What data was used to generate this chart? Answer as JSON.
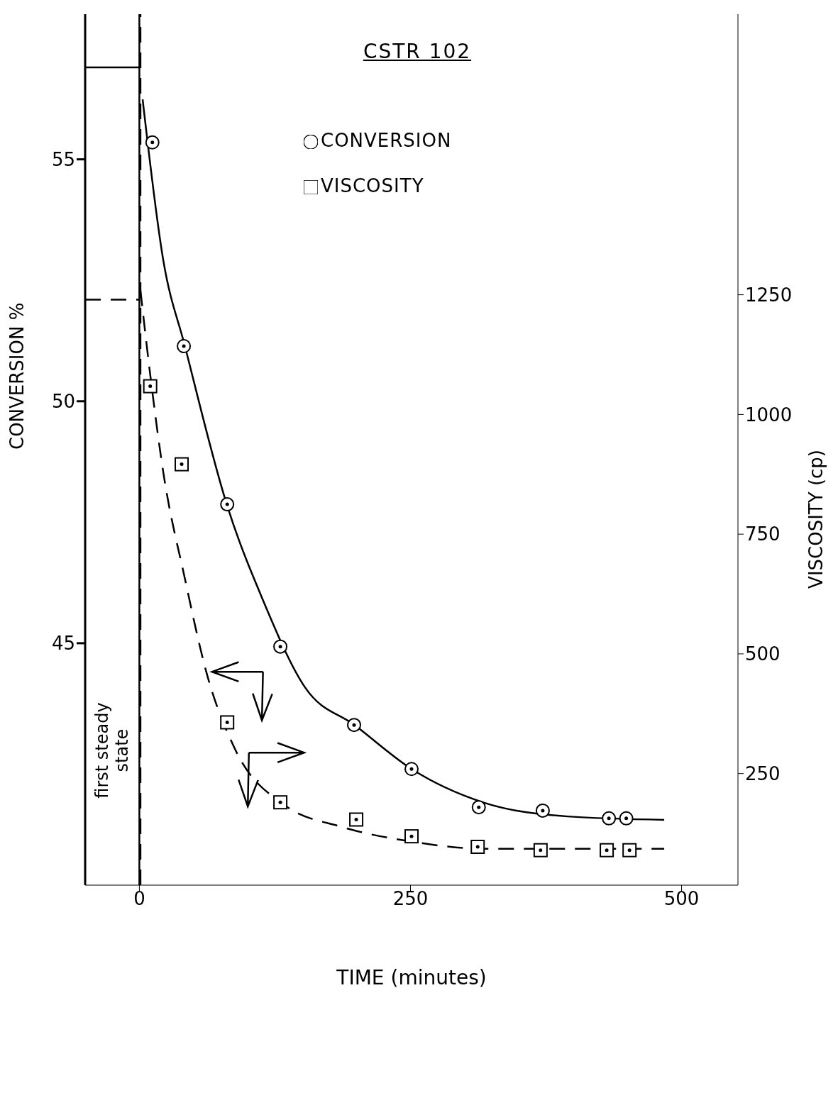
{
  "chart_data": {
    "type": "scatter",
    "title": "CSTR 102",
    "xlabel": "TIME (minutes)",
    "ylabel": "CONVERSION %",
    "y2label": "VISCOSITY (cp)",
    "xlim": [
      -50,
      552
    ],
    "xticks": [
      0,
      250,
      500
    ],
    "ylim": [
      40,
      58
    ],
    "yticks": [
      45,
      50,
      55
    ],
    "y2lim": [
      17,
      1836
    ],
    "y2ticks": [
      250,
      500,
      750,
      1000,
      1250
    ],
    "legend": "top",
    "series": [
      {
        "name": "CONVERSION",
        "marker": "circle",
        "color": "#000000",
        "x": [
          12,
          41,
          81,
          130,
          198,
          251,
          313,
          372,
          433,
          449
        ],
        "values": [
          55.35,
          51.14,
          47.87,
          44.93,
          43.31,
          42.4,
          41.61,
          41.54,
          41.38,
          41.38
        ]
      },
      {
        "name": "VISCOSITY",
        "marker": "square",
        "axis": "y2",
        "color": "#000000",
        "x": [
          10,
          39,
          81,
          130,
          200,
          251,
          312,
          370,
          431,
          452
        ],
        "values": [
          1059,
          896,
          357,
          190,
          154,
          119,
          97,
          90,
          90,
          90
        ]
      },
      {
        "type": "line",
        "marker": "none",
        "line_style": "solid",
        "color": "#000000",
        "x": [
          3,
          22,
          42,
          81,
          114,
          153,
          199,
          251,
          317,
          395,
          484
        ],
        "values": [
          56.24,
          52.92,
          51.14,
          47.84,
          45.89,
          44.08,
          43.3,
          42.4,
          41.71,
          41.42,
          41.35
        ]
      },
      {
        "type": "line",
        "marker": "none",
        "line_style": "dashed",
        "axis": "y2",
        "color": "#000000",
        "x": [
          1,
          9,
          22,
          42,
          62,
          88,
          134,
          186,
          251,
          317,
          484
        ],
        "values": [
          1259,
          1102,
          880,
          657,
          460,
          302,
          184,
          139,
          108,
          93,
          93
        ]
      },
      {
        "type": "line",
        "marker": "none",
        "line_style": "solid",
        "color": "#000000",
        "x": [
          -50,
          0
        ],
        "values": [
          56.9,
          56.9
        ]
      },
      {
        "type": "line",
        "marker": "none",
        "line_style": "dashed",
        "color": "#000000",
        "x": [
          -50,
          0
        ],
        "values": [
          52.1,
          52.1
        ]
      }
    ],
    "ref_lines": [
      {
        "axis": "x",
        "value": 0,
        "label": "first steady state",
        "line_style": "solid",
        "color": "#000000"
      },
      {
        "axis": "x",
        "value": 1,
        "label": null,
        "line_style": "dashed",
        "color": "#000000"
      }
    ]
  }
}
